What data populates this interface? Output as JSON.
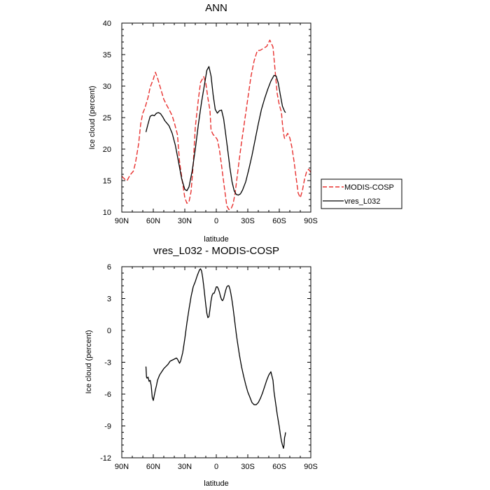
{
  "chart_data": [
    {
      "type": "line",
      "title": "ANN",
      "xlabel": "latitude",
      "ylabel": "Ice cloud (percent)",
      "xlim": [
        -90,
        90
      ],
      "ylim": [
        10,
        40
      ],
      "xticks": [
        -90,
        -60,
        -30,
        0,
        30,
        60,
        90
      ],
      "xtick_labels": [
        "90N",
        "60N",
        "30N",
        "0",
        "30S",
        "60S",
        "90S"
      ],
      "yticks": [
        10,
        15,
        20,
        25,
        30,
        35,
        40
      ],
      "ytick_labels": [
        "10",
        "15",
        "20",
        "25",
        "30",
        "35",
        "40"
      ],
      "legend_position": "right",
      "series": [
        {
          "name": "MODIS-COSP",
          "color": "#e8312f",
          "dash": "dashed",
          "x": [
            -90,
            -87,
            -85,
            -82,
            -79,
            -77,
            -74,
            -72,
            -70,
            -68,
            -65,
            -63,
            -60,
            -58,
            -56,
            -53,
            -50,
            -47,
            -45,
            -42,
            -40,
            -37,
            -35,
            -32,
            -30,
            -28,
            -26,
            -24,
            -22,
            -20,
            -17,
            -15,
            -12,
            -10,
            -8,
            -6,
            -5,
            -3,
            -1,
            1,
            3,
            5,
            8,
            10,
            12,
            14,
            16,
            18,
            20,
            22,
            24,
            27,
            30,
            33,
            36,
            39,
            42,
            45,
            48,
            51,
            54,
            56,
            58,
            60,
            62,
            63,
            64,
            65,
            66,
            68,
            70,
            72,
            74,
            76,
            78,
            80,
            82,
            84,
            86,
            88,
            90
          ],
          "values": [
            15.7,
            15.2,
            15.0,
            15.9,
            16.5,
            17.8,
            20.8,
            24.0,
            25.7,
            26.5,
            28.2,
            29.8,
            31.1,
            32.2,
            31.3,
            29.6,
            27.9,
            26.9,
            26.3,
            25.3,
            24.2,
            22.3,
            18.0,
            14.5,
            12.3,
            11.4,
            11.6,
            13.3,
            17.5,
            23.5,
            28.0,
            30.6,
            31.5,
            30.5,
            28.1,
            26.1,
            23.0,
            22.3,
            22.0,
            21.5,
            19.9,
            17.4,
            13.5,
            11.0,
            10.4,
            10.5,
            11.3,
            13.1,
            15.8,
            18.5,
            21.0,
            24.5,
            28.0,
            31.5,
            34.0,
            35.6,
            35.7,
            36.0,
            36.3,
            37.3,
            36.2,
            32.5,
            28.8,
            27.0,
            25.9,
            24.0,
            22.5,
            21.7,
            21.9,
            22.5,
            21.8,
            20.3,
            18.1,
            15.5,
            13.0,
            12.3,
            13.4,
            15.2,
            16.4,
            16.8,
            16.3
          ]
        },
        {
          "name": "vres_L032",
          "color": "#000000",
          "dash": "solid",
          "x": [
            -67,
            -65,
            -63,
            -61,
            -59,
            -57,
            -55,
            -53,
            -51,
            -49,
            -47,
            -45,
            -42,
            -39,
            -36,
            -33,
            -30,
            -28,
            -26,
            -23,
            -20,
            -17,
            -14,
            -11,
            -9,
            -7,
            -5,
            -3,
            -1,
            1,
            3,
            5,
            7,
            9,
            11,
            13,
            15,
            17,
            19,
            21,
            23,
            25,
            28,
            31,
            34,
            37,
            40,
            43,
            46,
            49,
            52,
            55,
            57,
            59,
            61,
            63,
            65,
            66
          ],
          "values": [
            22.7,
            24.0,
            25.2,
            25.4,
            25.3,
            25.7,
            25.8,
            25.6,
            25.1,
            24.5,
            24.1,
            23.7,
            22.5,
            20.6,
            18.0,
            15.3,
            13.6,
            13.4,
            14.0,
            16.5,
            20.0,
            24.0,
            27.5,
            30.5,
            32.5,
            33.1,
            31.6,
            28.6,
            26.3,
            25.7,
            26.1,
            26.2,
            24.8,
            22.3,
            19.7,
            17.0,
            14.8,
            13.4,
            12.8,
            12.7,
            12.9,
            13.5,
            14.8,
            16.8,
            19.0,
            21.5,
            24.0,
            26.3,
            28.0,
            29.5,
            30.8,
            31.7,
            31.6,
            30.5,
            28.6,
            26.8,
            26.0,
            25.8
          ]
        }
      ]
    },
    {
      "type": "line",
      "title": "vres_L032 - MODIS-COSP",
      "xlabel": "latitude",
      "ylabel": "Ice cloud (percent)",
      "xlim": [
        -90,
        90
      ],
      "ylim": [
        -12,
        6
      ],
      "xticks": [
        -90,
        -60,
        -30,
        0,
        30,
        60,
        90
      ],
      "xtick_labels": [
        "90N",
        "60N",
        "30N",
        "0",
        "30S",
        "60S",
        "90S"
      ],
      "yticks": [
        -12,
        -9,
        -6,
        -3,
        0,
        3,
        6
      ],
      "ytick_labels": [
        "-12",
        "-9",
        "-6",
        "-3",
        "0",
        "3",
        "6"
      ],
      "series": [
        {
          "color": "#000000",
          "dash": "solid",
          "x": [
            -67,
            -66.5,
            -66,
            -65,
            -64,
            -63,
            -62,
            -61,
            -60,
            -59,
            -58,
            -57,
            -56,
            -54,
            -52,
            -50,
            -48,
            -46,
            -44,
            -42,
            -40,
            -38,
            -37,
            -36,
            -35,
            -34,
            -33,
            -32,
            -30,
            -28,
            -26,
            -24,
            -22,
            -20,
            -18,
            -16,
            -15,
            -14,
            -13,
            -12,
            -11,
            -10,
            -9,
            -8,
            -7,
            -6,
            -5,
            -4,
            -3,
            -2,
            -1,
            0,
            1,
            2,
            3,
            4,
            5,
            6,
            7,
            8,
            9,
            10,
            11,
            12,
            13,
            14,
            15,
            16,
            17,
            18,
            19,
            20,
            22,
            24,
            26,
            28,
            30,
            32,
            34,
            36,
            38,
            40,
            42,
            44,
            46,
            48,
            50,
            52,
            54,
            55,
            56,
            57,
            58,
            59,
            60,
            61,
            62,
            63,
            64,
            64.5,
            65,
            65.5,
            66
          ],
          "values": [
            -3.4,
            -4.4,
            -4.5,
            -4.4,
            -4.8,
            -4.7,
            -5.2,
            -6.3,
            -6.6,
            -6.1,
            -5.6,
            -5.2,
            -4.7,
            -4.2,
            -3.9,
            -3.6,
            -3.4,
            -3.2,
            -2.9,
            -2.8,
            -2.7,
            -2.6,
            -2.7,
            -2.9,
            -3.1,
            -2.9,
            -2.5,
            -2.1,
            -0.8,
            0.7,
            2.0,
            3.2,
            4.1,
            4.6,
            5.2,
            5.7,
            5.8,
            5.6,
            5.0,
            4.2,
            3.3,
            2.4,
            1.6,
            1.2,
            1.3,
            2.0,
            2.8,
            3.3,
            3.5,
            3.5,
            3.8,
            4.1,
            4.1,
            3.9,
            3.6,
            3.2,
            2.9,
            2.8,
            3.0,
            3.4,
            3.8,
            4.1,
            4.2,
            4.2,
            3.9,
            3.4,
            2.8,
            2.1,
            1.3,
            0.5,
            -0.3,
            -1.0,
            -2.3,
            -3.4,
            -4.3,
            -5.1,
            -5.8,
            -6.3,
            -6.8,
            -7.0,
            -7.0,
            -6.8,
            -6.4,
            -5.9,
            -5.3,
            -4.7,
            -4.2,
            -3.9,
            -4.7,
            -5.8,
            -6.5,
            -7.2,
            -7.9,
            -8.5,
            -9.1,
            -9.8,
            -10.4,
            -10.8,
            -11.1,
            -10.8,
            -10.1,
            -9.9,
            -9.6
          ]
        }
      ]
    }
  ]
}
